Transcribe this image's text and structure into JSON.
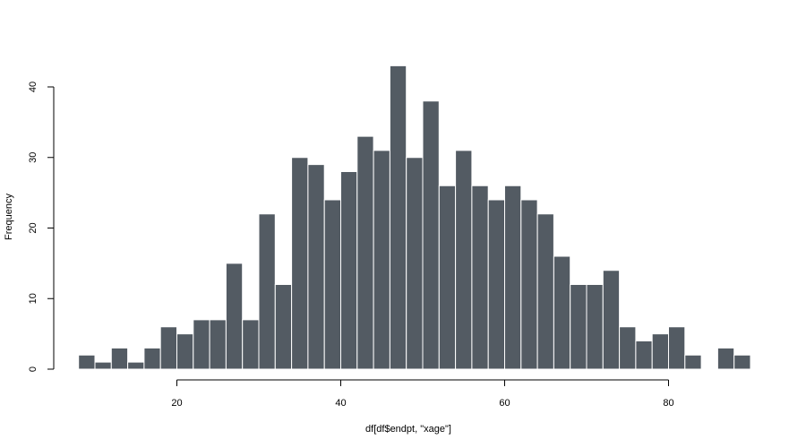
{
  "chart_data": {
    "type": "bar",
    "title": "",
    "xlabel": "df[df$endpt, \"xage\"]",
    "ylabel": "Frequency",
    "xlim": [
      8,
      90
    ],
    "ylim": [
      0,
      43
    ],
    "x_ticks": [
      20,
      40,
      60,
      80
    ],
    "y_ticks": [
      0,
      10,
      20,
      30,
      40
    ],
    "bin_width": 2,
    "bin_starts": [
      8,
      10,
      12,
      14,
      16,
      18,
      20,
      22,
      24,
      26,
      28,
      30,
      32,
      34,
      36,
      38,
      40,
      42,
      44,
      46,
      48,
      50,
      52,
      54,
      56,
      58,
      60,
      62,
      64,
      66,
      68,
      70,
      72,
      74,
      76,
      78,
      80,
      82,
      84,
      86,
      88
    ],
    "values": [
      2,
      1,
      3,
      1,
      3,
      6,
      5,
      7,
      7,
      15,
      7,
      22,
      12,
      30,
      29,
      24,
      28,
      33,
      31,
      43,
      30,
      38,
      26,
      31,
      26,
      24,
      26,
      24,
      22,
      16,
      12,
      12,
      14,
      6,
      4,
      5,
      6,
      2,
      0,
      3,
      2
    ],
    "bar_color": "#535b63",
    "grid": false
  }
}
